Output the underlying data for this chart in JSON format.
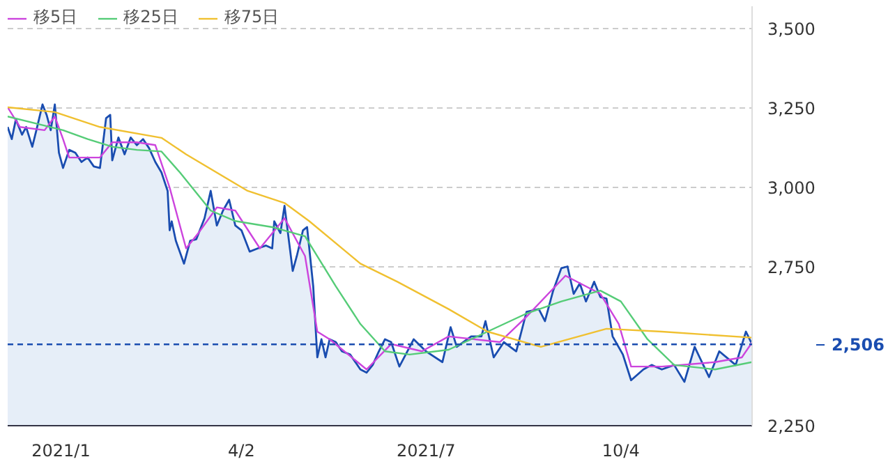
{
  "chart_data": {
    "type": "line",
    "xlim": [
      "2020-12-09",
      "2021-12-07"
    ],
    "ylim": [
      2250,
      3570
    ],
    "xticks": [
      {
        "value": "2021-01-04",
        "label": "2021/1"
      },
      {
        "value": "2021-04-02",
        "label": "4/2"
      },
      {
        "value": "2021-07-01",
        "label": "2021/7"
      },
      {
        "value": "2021-10-04",
        "label": "10/4"
      }
    ],
    "yticks": [
      {
        "value": 2250,
        "label": "2,250"
      },
      {
        "value": 2750,
        "label": "2,750"
      },
      {
        "value": 3000,
        "label": "3,000"
      },
      {
        "value": 3250,
        "label": "3,250"
      },
      {
        "value": 3500,
        "label": "3,500"
      }
    ],
    "grid": "y",
    "legend": "top left",
    "marker": "none",
    "series": [
      {
        "type": "area",
        "color": "#1a4db0",
        "x": [
          "2020-12-09",
          "2020-12-11",
          "2020-12-13",
          "2020-12-16",
          "2020-12-18",
          "2020-12-21",
          "2020-12-23",
          "2020-12-26",
          "2020-12-28",
          "2020-12-30",
          "2021-01-01",
          "2021-01-03",
          "2021-01-05",
          "2021-01-08",
          "2021-01-11",
          "2021-01-14",
          "2021-01-17",
          "2021-01-20",
          "2021-01-23",
          "2021-01-26",
          "2021-01-28",
          "2021-01-29",
          "2021-02-01",
          "2021-02-04",
          "2021-02-07",
          "2021-02-10",
          "2021-02-13",
          "2021-02-16",
          "2021-02-19",
          "2021-02-22",
          "2021-02-25",
          "2021-02-26",
          "2021-02-27",
          "2021-03-01",
          "2021-03-05",
          "2021-03-08",
          "2021-03-11",
          "2021-03-15",
          "2021-03-18",
          "2021-03-21",
          "2021-03-24",
          "2021-03-27",
          "2021-03-30",
          "2021-04-02",
          "2021-04-06",
          "2021-04-10",
          "2021-04-14",
          "2021-04-17",
          "2021-04-18",
          "2021-04-21",
          "2021-04-23",
          "2021-04-27",
          "2021-04-29",
          "2021-05-02",
          "2021-05-04",
          "2021-05-07",
          "2021-05-09",
          "2021-05-11",
          "2021-05-13",
          "2021-05-15",
          "2021-05-18",
          "2021-05-21",
          "2021-05-25",
          "2021-05-30",
          "2021-06-02",
          "2021-06-05",
          "2021-06-08",
          "2021-06-11",
          "2021-06-14",
          "2021-06-18",
          "2021-06-25",
          "2021-07-01",
          "2021-07-09",
          "2021-07-13",
          "2021-07-16",
          "2021-07-23",
          "2021-07-28",
          "2021-07-30",
          "2021-08-03",
          "2021-08-08",
          "2021-08-14",
          "2021-08-19",
          "2021-08-25",
          "2021-08-28",
          "2021-09-01",
          "2021-09-05",
          "2021-09-08",
          "2021-09-11",
          "2021-09-14",
          "2021-09-17",
          "2021-09-21",
          "2021-09-24",
          "2021-09-27",
          "2021-09-30",
          "2021-10-05",
          "2021-10-09",
          "2021-10-15",
          "2021-10-19",
          "2021-10-24",
          "2021-10-30",
          "2021-11-04",
          "2021-11-09",
          "2021-11-16",
          "2021-11-21",
          "2021-11-29",
          "2021-12-04",
          "2021-12-07"
        ],
        "values": [
          3190,
          3152,
          3214,
          3166,
          3190,
          3128,
          3180,
          3261,
          3228,
          3180,
          3261,
          3109,
          3061,
          3118,
          3109,
          3080,
          3094,
          3066,
          3061,
          3218,
          3228,
          3085,
          3157,
          3104,
          3157,
          3133,
          3152,
          3123,
          3080,
          3047,
          2989,
          2865,
          2893,
          2832,
          2760,
          2832,
          2837,
          2903,
          2989,
          2880,
          2927,
          2961,
          2880,
          2865,
          2798,
          2808,
          2817,
          2808,
          2893,
          2856,
          2942,
          2737,
          2784,
          2865,
          2875,
          2689,
          2465,
          2522,
          2465,
          2522,
          2513,
          2484,
          2474,
          2427,
          2417,
          2441,
          2484,
          2522,
          2513,
          2436,
          2522,
          2484,
          2450,
          2560,
          2498,
          2531,
          2531,
          2579,
          2465,
          2513,
          2484,
          2608,
          2617,
          2579,
          2675,
          2746,
          2751,
          2665,
          2698,
          2641,
          2703,
          2655,
          2650,
          2531,
          2474,
          2393,
          2427,
          2441,
          2427,
          2441,
          2388,
          2498,
          2403,
          2484,
          2441,
          2546,
          2506
        ]
      },
      {
        "name": "移5日",
        "color": "#cc44dd",
        "x": [
          "2020-12-09",
          "2020-12-15",
          "2020-12-27",
          "2021-01-01",
          "2021-01-05",
          "2021-01-08",
          "2021-01-23",
          "2021-01-29",
          "2021-02-10",
          "2021-02-19",
          "2021-02-26",
          "2021-03-06",
          "2021-03-12",
          "2021-03-21",
          "2021-03-30",
          "2021-04-11",
          "2021-04-23",
          "2021-05-03",
          "2021-05-09",
          "2021-05-15",
          "2021-06-02",
          "2021-06-14",
          "2021-06-29",
          "2021-07-12",
          "2021-08-06",
          "2021-08-19",
          "2021-09-07",
          "2021-09-24",
          "2021-10-03",
          "2021-10-09",
          "2021-10-24",
          "2021-11-19",
          "2021-12-02",
          "2021-12-07"
        ],
        "values": [
          3252,
          3190,
          3180,
          3223,
          3152,
          3094,
          3094,
          3142,
          3142,
          3133,
          2999,
          2808,
          2856,
          2937,
          2927,
          2808,
          2903,
          2784,
          2546,
          2522,
          2427,
          2507,
          2484,
          2531,
          2513,
          2593,
          2722,
          2665,
          2570,
          2436,
          2436,
          2450,
          2465,
          2512
        ]
      },
      {
        "name": "移25日",
        "color": "#55cc77",
        "x": [
          "2020-12-09",
          "2020-12-24",
          "2021-01-05",
          "2021-01-17",
          "2021-01-29",
          "2021-02-10",
          "2021-02-22",
          "2021-03-03",
          "2021-03-18",
          "2021-03-30",
          "2021-04-17",
          "2021-05-03",
          "2021-05-18",
          "2021-05-30",
          "2021-06-11",
          "2021-06-23",
          "2021-07-12",
          "2021-07-31",
          "2021-08-19",
          "2021-09-05",
          "2021-09-24",
          "2021-10-04",
          "2021-10-17",
          "2021-10-30",
          "2021-11-19",
          "2021-12-07"
        ],
        "values": [
          3223,
          3199,
          3180,
          3152,
          3128,
          3118,
          3113,
          3047,
          2927,
          2894,
          2875,
          2846,
          2689,
          2570,
          2484,
          2474,
          2489,
          2546,
          2603,
          2641,
          2675,
          2641,
          2522,
          2441,
          2427,
          2450
        ]
      },
      {
        "name": "移75日",
        "color": "#f0c030",
        "x": [
          "2020-12-09",
          "2021-01-01",
          "2021-01-23",
          "2021-02-22",
          "2021-03-06",
          "2021-04-05",
          "2021-04-23",
          "2021-05-05",
          "2021-05-30",
          "2021-06-17",
          "2021-07-12",
          "2021-07-31",
          "2021-08-26",
          "2021-09-27",
          "2021-10-24",
          "2021-12-07"
        ],
        "values": [
          3252,
          3237,
          3190,
          3156,
          3104,
          2989,
          2951,
          2894,
          2760,
          2703,
          2617,
          2546,
          2498,
          2555,
          2546,
          2527
        ]
      }
    ],
    "ref_lines": [
      {
        "axis": "y",
        "value": 2506,
        "label": "2,506",
        "color": "#1a4db0",
        "line_style": "dashed"
      }
    ]
  }
}
